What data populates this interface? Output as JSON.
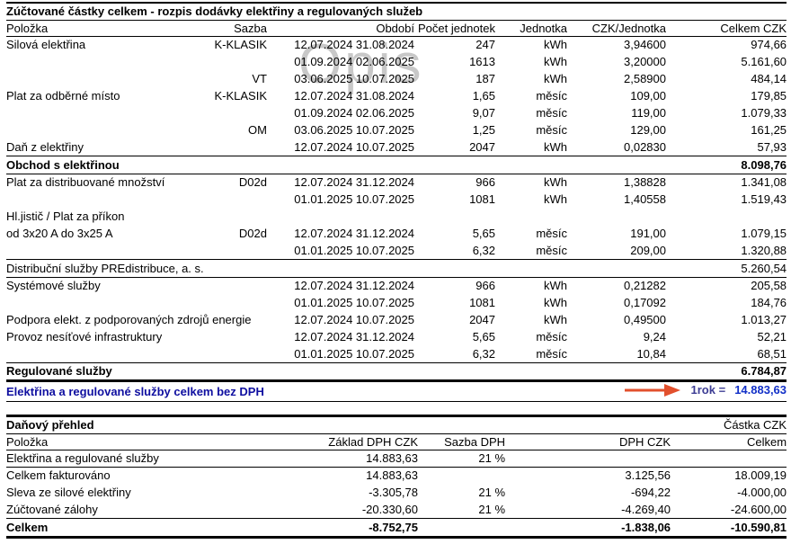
{
  "watermark": "Opis",
  "colors": {
    "grand_label_blue": "#0f0fa0",
    "grand_value_blue": "#1230c8",
    "annotation_indigo": "#3d3d94",
    "arrow_red": "#e2502d",
    "watermark_gray": "#c8c8c8"
  },
  "main_table": {
    "title": "Zúčtované částky celkem - rozpis dodávky elektřiny a regulovaných služeb",
    "headers": [
      "Položka",
      "Sazba",
      "Období",
      "Počet jednotek",
      "Jednotka",
      "CZK/Jednotka",
      "Celkem CZK"
    ],
    "rows": [
      {
        "type": "item",
        "cells": [
          "Silová elektřina",
          "K-KLASIK",
          "12.07.2024 31.08.2024",
          "247",
          "kWh",
          "3,94600",
          "974,66"
        ]
      },
      {
        "type": "item",
        "cells": [
          "",
          "",
          "01.09.2024 02.06.2025",
          "1613",
          "kWh",
          "3,20000",
          "5.161,60"
        ]
      },
      {
        "type": "item",
        "cells": [
          "",
          "VT",
          "03.06.2025 10.07.2025",
          "187",
          "kWh",
          "2,58900",
          "484,14"
        ]
      },
      {
        "type": "item",
        "cells": [
          "Plat za  odběrné místo",
          "K-KLASIK",
          "12.07.2024 31.08.2024",
          "1,65",
          "měsíc",
          "109,00",
          "179,85"
        ]
      },
      {
        "type": "item",
        "cells": [
          "",
          "",
          "01.09.2024 02.06.2025",
          "9,07",
          "měsíc",
          "119,00",
          "1.079,33"
        ]
      },
      {
        "type": "item",
        "cells": [
          "",
          "OM",
          "03.06.2025 10.07.2025",
          "1,25",
          "měsíc",
          "129,00",
          "161,25"
        ]
      },
      {
        "type": "item",
        "cells": [
          "Daň z elektřiny",
          "",
          "12.07.2024 10.07.2025",
          "2047",
          "kWh",
          "0,02830",
          "57,93"
        ]
      },
      {
        "type": "section",
        "emphasis": true,
        "label": "Obchod s elektřinou",
        "total": "8.098,76"
      },
      {
        "type": "item",
        "cells": [
          "Plat za distribuované množství",
          "D02d",
          "12.07.2024 31.12.2024",
          "966",
          "kWh",
          "1,38828",
          "1.341,08"
        ]
      },
      {
        "type": "item",
        "cells": [
          "",
          "",
          "01.01.2025 10.07.2025",
          "1081",
          "kWh",
          "1,40558",
          "1.519,43"
        ]
      },
      {
        "type": "item",
        "cells": [
          "Hl.jistič / Plat za příkon",
          "",
          "",
          "",
          "",
          "",
          ""
        ]
      },
      {
        "type": "item",
        "cells": [
          "od 3x20  A do 3x25  A",
          "D02d",
          "12.07.2024 31.12.2024",
          "5,65",
          "měsíc",
          "191,00",
          "1.079,15"
        ]
      },
      {
        "type": "item",
        "cells": [
          "",
          "",
          "01.01.2025 10.07.2025",
          "6,32",
          "měsíc",
          "209,00",
          "1.320,88"
        ]
      },
      {
        "type": "section",
        "emphasis": false,
        "label": "Distribuční služby PREdistribuce, a. s.",
        "total": "5.260,54"
      },
      {
        "type": "item",
        "cells": [
          "Systémové služby",
          "",
          "12.07.2024 31.12.2024",
          "966",
          "kWh",
          "0,21282",
          "205,58"
        ]
      },
      {
        "type": "item",
        "cells": [
          "",
          "",
          "01.01.2025 10.07.2025",
          "1081",
          "kWh",
          "0,17092",
          "184,76"
        ]
      },
      {
        "type": "item",
        "cells": [
          "Podpora elekt. z podporovaných zdrojů energie",
          "",
          "12.07.2024 10.07.2025",
          "2047",
          "kWh",
          "0,49500",
          "1.013,27"
        ]
      },
      {
        "type": "item",
        "cells": [
          "Provoz nesíťové infrastruktury",
          "",
          "12.07.2024 31.12.2024",
          "5,65",
          "měsíc",
          "9,24",
          "52,21"
        ]
      },
      {
        "type": "item",
        "cells": [
          "",
          "",
          "01.01.2025 10.07.2025",
          "6,32",
          "měsíc",
          "10,84",
          "68,51"
        ]
      },
      {
        "type": "section",
        "emphasis": true,
        "thick_bottom": true,
        "label": "Regulované služby",
        "total": "6.784,87"
      }
    ],
    "grand_total": {
      "label": "Elektřina a regulované služby celkem bez DPH",
      "annotation": "1rok =",
      "value": "14.883,63"
    }
  },
  "tax_table": {
    "title": "Daňový přehled",
    "amount_label": "Částka CZK",
    "headers": [
      "Položka",
      "Základ DPH CZK",
      "Sazba DPH",
      "DPH CZK",
      "Celkem"
    ],
    "rows": [
      {
        "type": "item",
        "rule_below": true,
        "cells": [
          "Elektřina a regulované služby",
          "14.883,63",
          "21 %",
          "",
          ""
        ]
      },
      {
        "type": "item",
        "cells": [
          "Celkem fakturováno",
          "14.883,63",
          "",
          "3.125,56",
          "18.009,19"
        ]
      },
      {
        "type": "item",
        "cells": [
          "Sleva ze silové elektřiny",
          "-3.305,78",
          "21 %",
          "-694,22",
          "-4.000,00"
        ]
      },
      {
        "type": "item",
        "cells": [
          "Zúčtované zálohy",
          "-20.330,60",
          "21 %",
          "-4.269,40",
          "-24.600,00"
        ]
      },
      {
        "type": "total",
        "cells": [
          "Celkem",
          "-8.752,75",
          "",
          "-1.838,06",
          "-10.590,81"
        ]
      }
    ]
  }
}
